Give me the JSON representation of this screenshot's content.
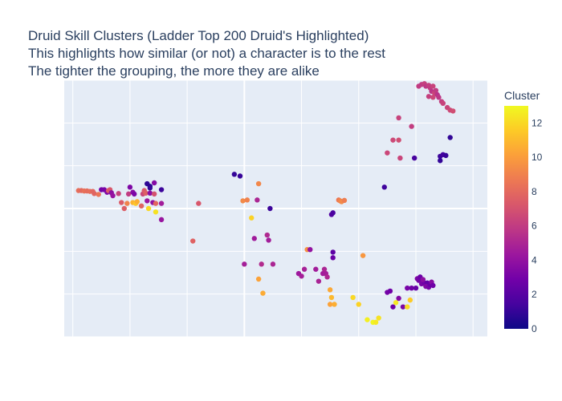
{
  "title_lines": [
    "Druid Skill Clusters (Ladder Top 200 Druid's Highlighted)",
    "This highlights how similar (or not) a character is to the rest",
    "The tighter the grouping, the more they are alike"
  ],
  "colorbar": {
    "title": "Cluster",
    "ticks": [
      "0",
      "2",
      "4",
      "6",
      "8",
      "10",
      "12"
    ],
    "stops": [
      "#0d0887",
      "#46039f",
      "#7201a8",
      "#9c179e",
      "#bd3786",
      "#d8576b",
      "#ed7953",
      "#fb9f3a",
      "#fdca26",
      "#f0f921"
    ]
  },
  "chart_data": {
    "type": "scatter",
    "title": "Druid Skill Clusters (Ladder Top 200 Druid's Highlighted)",
    "xlabel": "",
    "ylabel": "",
    "show_tick_labels": false,
    "grid": true,
    "xlim": [
      -6.3,
      8.5
    ],
    "ylim": [
      -3.0,
      3.0
    ],
    "color_variable": "Cluster",
    "color_range": [
      0,
      13
    ],
    "points": [
      {
        "x": -5.8,
        "y": 0.42,
        "c": 8.2
      },
      {
        "x": -5.7,
        "y": 0.42,
        "c": 8.0
      },
      {
        "x": -5.6,
        "y": 0.41,
        "c": 8.3
      },
      {
        "x": -5.5,
        "y": 0.41,
        "c": 8.1
      },
      {
        "x": -5.4,
        "y": 0.4,
        "c": 8.2
      },
      {
        "x": -5.3,
        "y": 0.4,
        "c": 7.9
      },
      {
        "x": -5.25,
        "y": 0.35,
        "c": 7.8
      },
      {
        "x": -5.1,
        "y": 0.33,
        "c": 8.5
      },
      {
        "x": -5.0,
        "y": 0.44,
        "c": 3.0
      },
      {
        "x": -4.9,
        "y": 0.44,
        "c": 3.1
      },
      {
        "x": -4.8,
        "y": 0.38,
        "c": 3.4
      },
      {
        "x": -4.75,
        "y": 0.42,
        "c": 7.7
      },
      {
        "x": -4.7,
        "y": 0.44,
        "c": 7.2
      },
      {
        "x": -4.65,
        "y": 0.37,
        "c": 3.8
      },
      {
        "x": -4.6,
        "y": 0.3,
        "c": 4.1
      },
      {
        "x": -4.4,
        "y": 0.35,
        "c": 6.3
      },
      {
        "x": -4.3,
        "y": 0.14,
        "c": 7.4
      },
      {
        "x": -4.2,
        "y": 0.0,
        "c": 7.5
      },
      {
        "x": -4.1,
        "y": 0.12,
        "c": 9.0
      },
      {
        "x": -4.05,
        "y": 0.34,
        "c": 6.0
      },
      {
        "x": -4.0,
        "y": 0.5,
        "c": 3.3
      },
      {
        "x": -3.9,
        "y": 0.38,
        "c": 3.6
      },
      {
        "x": -3.85,
        "y": 0.34,
        "c": 3.2
      },
      {
        "x": -3.9,
        "y": 0.14,
        "c": 10.8
      },
      {
        "x": -3.8,
        "y": 0.12,
        "c": 11.5
      },
      {
        "x": -3.75,
        "y": 0.16,
        "c": 10.6
      },
      {
        "x": -3.6,
        "y": 0.06,
        "c": 7.8
      },
      {
        "x": -3.55,
        "y": 0.34,
        "c": 6.5
      },
      {
        "x": -3.5,
        "y": 0.42,
        "c": 7.3
      },
      {
        "x": -3.45,
        "y": 0.36,
        "c": 7.6
      },
      {
        "x": -3.4,
        "y": 0.18,
        "c": 4.3
      },
      {
        "x": -3.4,
        "y": 0.58,
        "c": 0.8
      },
      {
        "x": -3.3,
        "y": 0.52,
        "c": 0.6
      },
      {
        "x": -3.3,
        "y": 0.48,
        "c": 1.0
      },
      {
        "x": -3.35,
        "y": 0.0,
        "c": 12.0
      },
      {
        "x": -3.3,
        "y": 0.36,
        "c": 3.7
      },
      {
        "x": -3.2,
        "y": 0.14,
        "c": 3.9
      },
      {
        "x": -3.15,
        "y": 0.6,
        "c": 3.5
      },
      {
        "x": -3.15,
        "y": 0.34,
        "c": 7.0
      },
      {
        "x": -3.1,
        "y": 0.12,
        "c": 7.9
      },
      {
        "x": -3.1,
        "y": -0.08,
        "c": 12.3
      },
      {
        "x": -2.9,
        "y": 0.44,
        "c": 1.2
      },
      {
        "x": -2.9,
        "y": 0.12,
        "c": 4.6
      },
      {
        "x": -2.9,
        "y": -0.26,
        "c": 4.2
      },
      {
        "x": -1.6,
        "y": 0.12,
        "c": 7.2
      },
      {
        "x": -1.8,
        "y": -0.76,
        "c": 7.7
      },
      {
        "x": -0.35,
        "y": 0.8,
        "c": 1.0
      },
      {
        "x": -0.15,
        "y": 0.76,
        "c": 1.1
      },
      {
        "x": -0.05,
        "y": 0.18,
        "c": 9.3
      },
      {
        "x": 0.1,
        "y": 0.2,
        "c": 9.0
      },
      {
        "x": 0.25,
        "y": -0.22,
        "c": 11.8
      },
      {
        "x": 0.5,
        "y": 0.58,
        "c": 9.2
      },
      {
        "x": 0.45,
        "y": 0.2,
        "c": 5.0
      },
      {
        "x": 0.35,
        "y": -0.7,
        "c": 4.5
      },
      {
        "x": 0.8,
        "y": -0.62,
        "c": 5.2
      },
      {
        "x": 0.9,
        "y": 0.0,
        "c": 1.2
      },
      {
        "x": 0.85,
        "y": -0.74,
        "c": 4.6
      },
      {
        "x": 0.6,
        "y": -1.3,
        "c": 5.3
      },
      {
        "x": 1.0,
        "y": -1.3,
        "c": 5.0
      },
      {
        "x": 0.0,
        "y": -1.3,
        "c": 4.7
      },
      {
        "x": 0.5,
        "y": -1.65,
        "c": 10.2
      },
      {
        "x": 0.65,
        "y": -1.98,
        "c": 10.5
      },
      {
        "x": 1.9,
        "y": -1.52,
        "c": 4.4
      },
      {
        "x": 2.0,
        "y": -1.58,
        "c": 4.7
      },
      {
        "x": 2.1,
        "y": -1.42,
        "c": 4.8
      },
      {
        "x": 2.2,
        "y": -0.96,
        "c": 9.5
      },
      {
        "x": 2.3,
        "y": -0.96,
        "c": 4.0
      },
      {
        "x": 2.5,
        "y": -1.42,
        "c": 4.6
      },
      {
        "x": 2.6,
        "y": -1.7,
        "c": 4.9
      },
      {
        "x": 2.75,
        "y": -1.52,
        "c": 4.6
      },
      {
        "x": 2.8,
        "y": -1.42,
        "c": 5.0
      },
      {
        "x": 2.85,
        "y": -1.52,
        "c": 4.7
      },
      {
        "x": 2.9,
        "y": -1.6,
        "c": 5.1
      },
      {
        "x": 3.0,
        "y": -1.9,
        "c": 10.4
      },
      {
        "x": 3.05,
        "y": -2.08,
        "c": 11.0
      },
      {
        "x": 3.0,
        "y": -2.24,
        "c": 10.2
      },
      {
        "x": 3.15,
        "y": -2.24,
        "c": 10.6
      },
      {
        "x": 3.1,
        "y": -1.02,
        "c": 2.2
      },
      {
        "x": 3.1,
        "y": -1.15,
        "c": 2.6
      },
      {
        "x": 3.05,
        "y": -0.14,
        "c": 1.8
      },
      {
        "x": 3.1,
        "y": -0.1,
        "c": 1.6
      },
      {
        "x": 3.3,
        "y": 0.2,
        "c": 8.6
      },
      {
        "x": 3.35,
        "y": 0.18,
        "c": 9.0
      },
      {
        "x": 3.4,
        "y": 0.16,
        "c": 9.3
      },
      {
        "x": 3.5,
        "y": 0.19,
        "c": 8.8
      },
      {
        "x": 3.8,
        "y": -2.08,
        "c": 12.0
      },
      {
        "x": 4.0,
        "y": -2.24,
        "c": 11.8
      },
      {
        "x": 4.3,
        "y": -2.6,
        "c": 12.7
      },
      {
        "x": 4.5,
        "y": -2.66,
        "c": 12.9
      },
      {
        "x": 4.6,
        "y": -2.66,
        "c": 12.5
      },
      {
        "x": 4.7,
        "y": -2.56,
        "c": 12.3
      },
      {
        "x": 4.15,
        "y": -1.1,
        "c": 9.8
      },
      {
        "x": 4.9,
        "y": 0.5,
        "c": 1.3
      },
      {
        "x": 5.0,
        "y": -1.96,
        "c": 3.0
      },
      {
        "x": 5.1,
        "y": -1.93,
        "c": 2.8
      },
      {
        "x": 5.2,
        "y": -2.3,
        "c": 2.7
      },
      {
        "x": 5.3,
        "y": -2.2,
        "c": 12.5
      },
      {
        "x": 5.4,
        "y": -2.1,
        "c": 3.5
      },
      {
        "x": 5.55,
        "y": -2.3,
        "c": 3.2
      },
      {
        "x": 5.7,
        "y": -2.3,
        "c": 12.0
      },
      {
        "x": 5.8,
        "y": -2.14,
        "c": 11.6
      },
      {
        "x": 5.7,
        "y": -1.86,
        "c": 3.1
      },
      {
        "x": 5.85,
        "y": -1.86,
        "c": 2.8
      },
      {
        "x": 6.0,
        "y": -1.86,
        "c": 2.5
      },
      {
        "x": 6.05,
        "y": -1.64,
        "c": 3.3
      },
      {
        "x": 6.1,
        "y": -1.68,
        "c": 3.0
      },
      {
        "x": 6.15,
        "y": -1.6,
        "c": 2.7
      },
      {
        "x": 6.2,
        "y": -1.76,
        "c": 3.2
      },
      {
        "x": 6.3,
        "y": -1.74,
        "c": 2.9
      },
      {
        "x": 6.4,
        "y": -1.74,
        "c": 2.4
      },
      {
        "x": 6.35,
        "y": -1.82,
        "c": 3.4
      },
      {
        "x": 6.45,
        "y": -1.84,
        "c": 3.1
      },
      {
        "x": 6.5,
        "y": -1.78,
        "c": 2.6
      },
      {
        "x": 6.55,
        "y": -1.72,
        "c": 3.6
      },
      {
        "x": 6.6,
        "y": -1.8,
        "c": 2.8
      },
      {
        "x": 6.25,
        "y": -1.66,
        "c": 3.8
      },
      {
        "x": 5.0,
        "y": 1.3,
        "c": 6.5
      },
      {
        "x": 5.2,
        "y": 1.6,
        "c": 6.6
      },
      {
        "x": 5.4,
        "y": 1.6,
        "c": 6.8
      },
      {
        "x": 5.45,
        "y": 1.18,
        "c": 6.4
      },
      {
        "x": 5.4,
        "y": 2.12,
        "c": 6.3
      },
      {
        "x": 5.85,
        "y": 1.92,
        "c": 6.1
      },
      {
        "x": 5.95,
        "y": 1.18,
        "c": 1.5
      },
      {
        "x": 6.1,
        "y": 2.86,
        "c": 6.0
      },
      {
        "x": 6.2,
        "y": 2.9,
        "c": 5.9
      },
      {
        "x": 6.3,
        "y": 2.92,
        "c": 6.2
      },
      {
        "x": 6.35,
        "y": 2.86,
        "c": 5.8
      },
      {
        "x": 6.45,
        "y": 2.88,
        "c": 6.1
      },
      {
        "x": 6.5,
        "y": 2.82,
        "c": 6.0
      },
      {
        "x": 6.55,
        "y": 2.74,
        "c": 5.7
      },
      {
        "x": 6.6,
        "y": 2.86,
        "c": 6.3
      },
      {
        "x": 6.65,
        "y": 2.7,
        "c": 6.4
      },
      {
        "x": 6.7,
        "y": 2.76,
        "c": 6.0
      },
      {
        "x": 6.75,
        "y": 2.66,
        "c": 5.6
      },
      {
        "x": 6.45,
        "y": 2.62,
        "c": 6.2
      },
      {
        "x": 6.6,
        "y": 2.6,
        "c": 6.5
      },
      {
        "x": 6.8,
        "y": 2.6,
        "c": 5.8
      },
      {
        "x": 6.9,
        "y": 2.5,
        "c": 6.1
      },
      {
        "x": 6.95,
        "y": 2.46,
        "c": 6.3
      },
      {
        "x": 7.1,
        "y": 2.36,
        "c": 6.4
      },
      {
        "x": 7.2,
        "y": 2.3,
        "c": 6.6
      },
      {
        "x": 7.3,
        "y": 2.28,
        "c": 6.8
      },
      {
        "x": 6.85,
        "y": 1.22,
        "c": 1.2
      },
      {
        "x": 6.85,
        "y": 1.12,
        "c": 1.0
      },
      {
        "x": 6.95,
        "y": 1.26,
        "c": 1.4
      },
      {
        "x": 7.05,
        "y": 1.24,
        "c": 1.1
      },
      {
        "x": 7.2,
        "y": 1.66,
        "c": 0.9
      }
    ]
  }
}
